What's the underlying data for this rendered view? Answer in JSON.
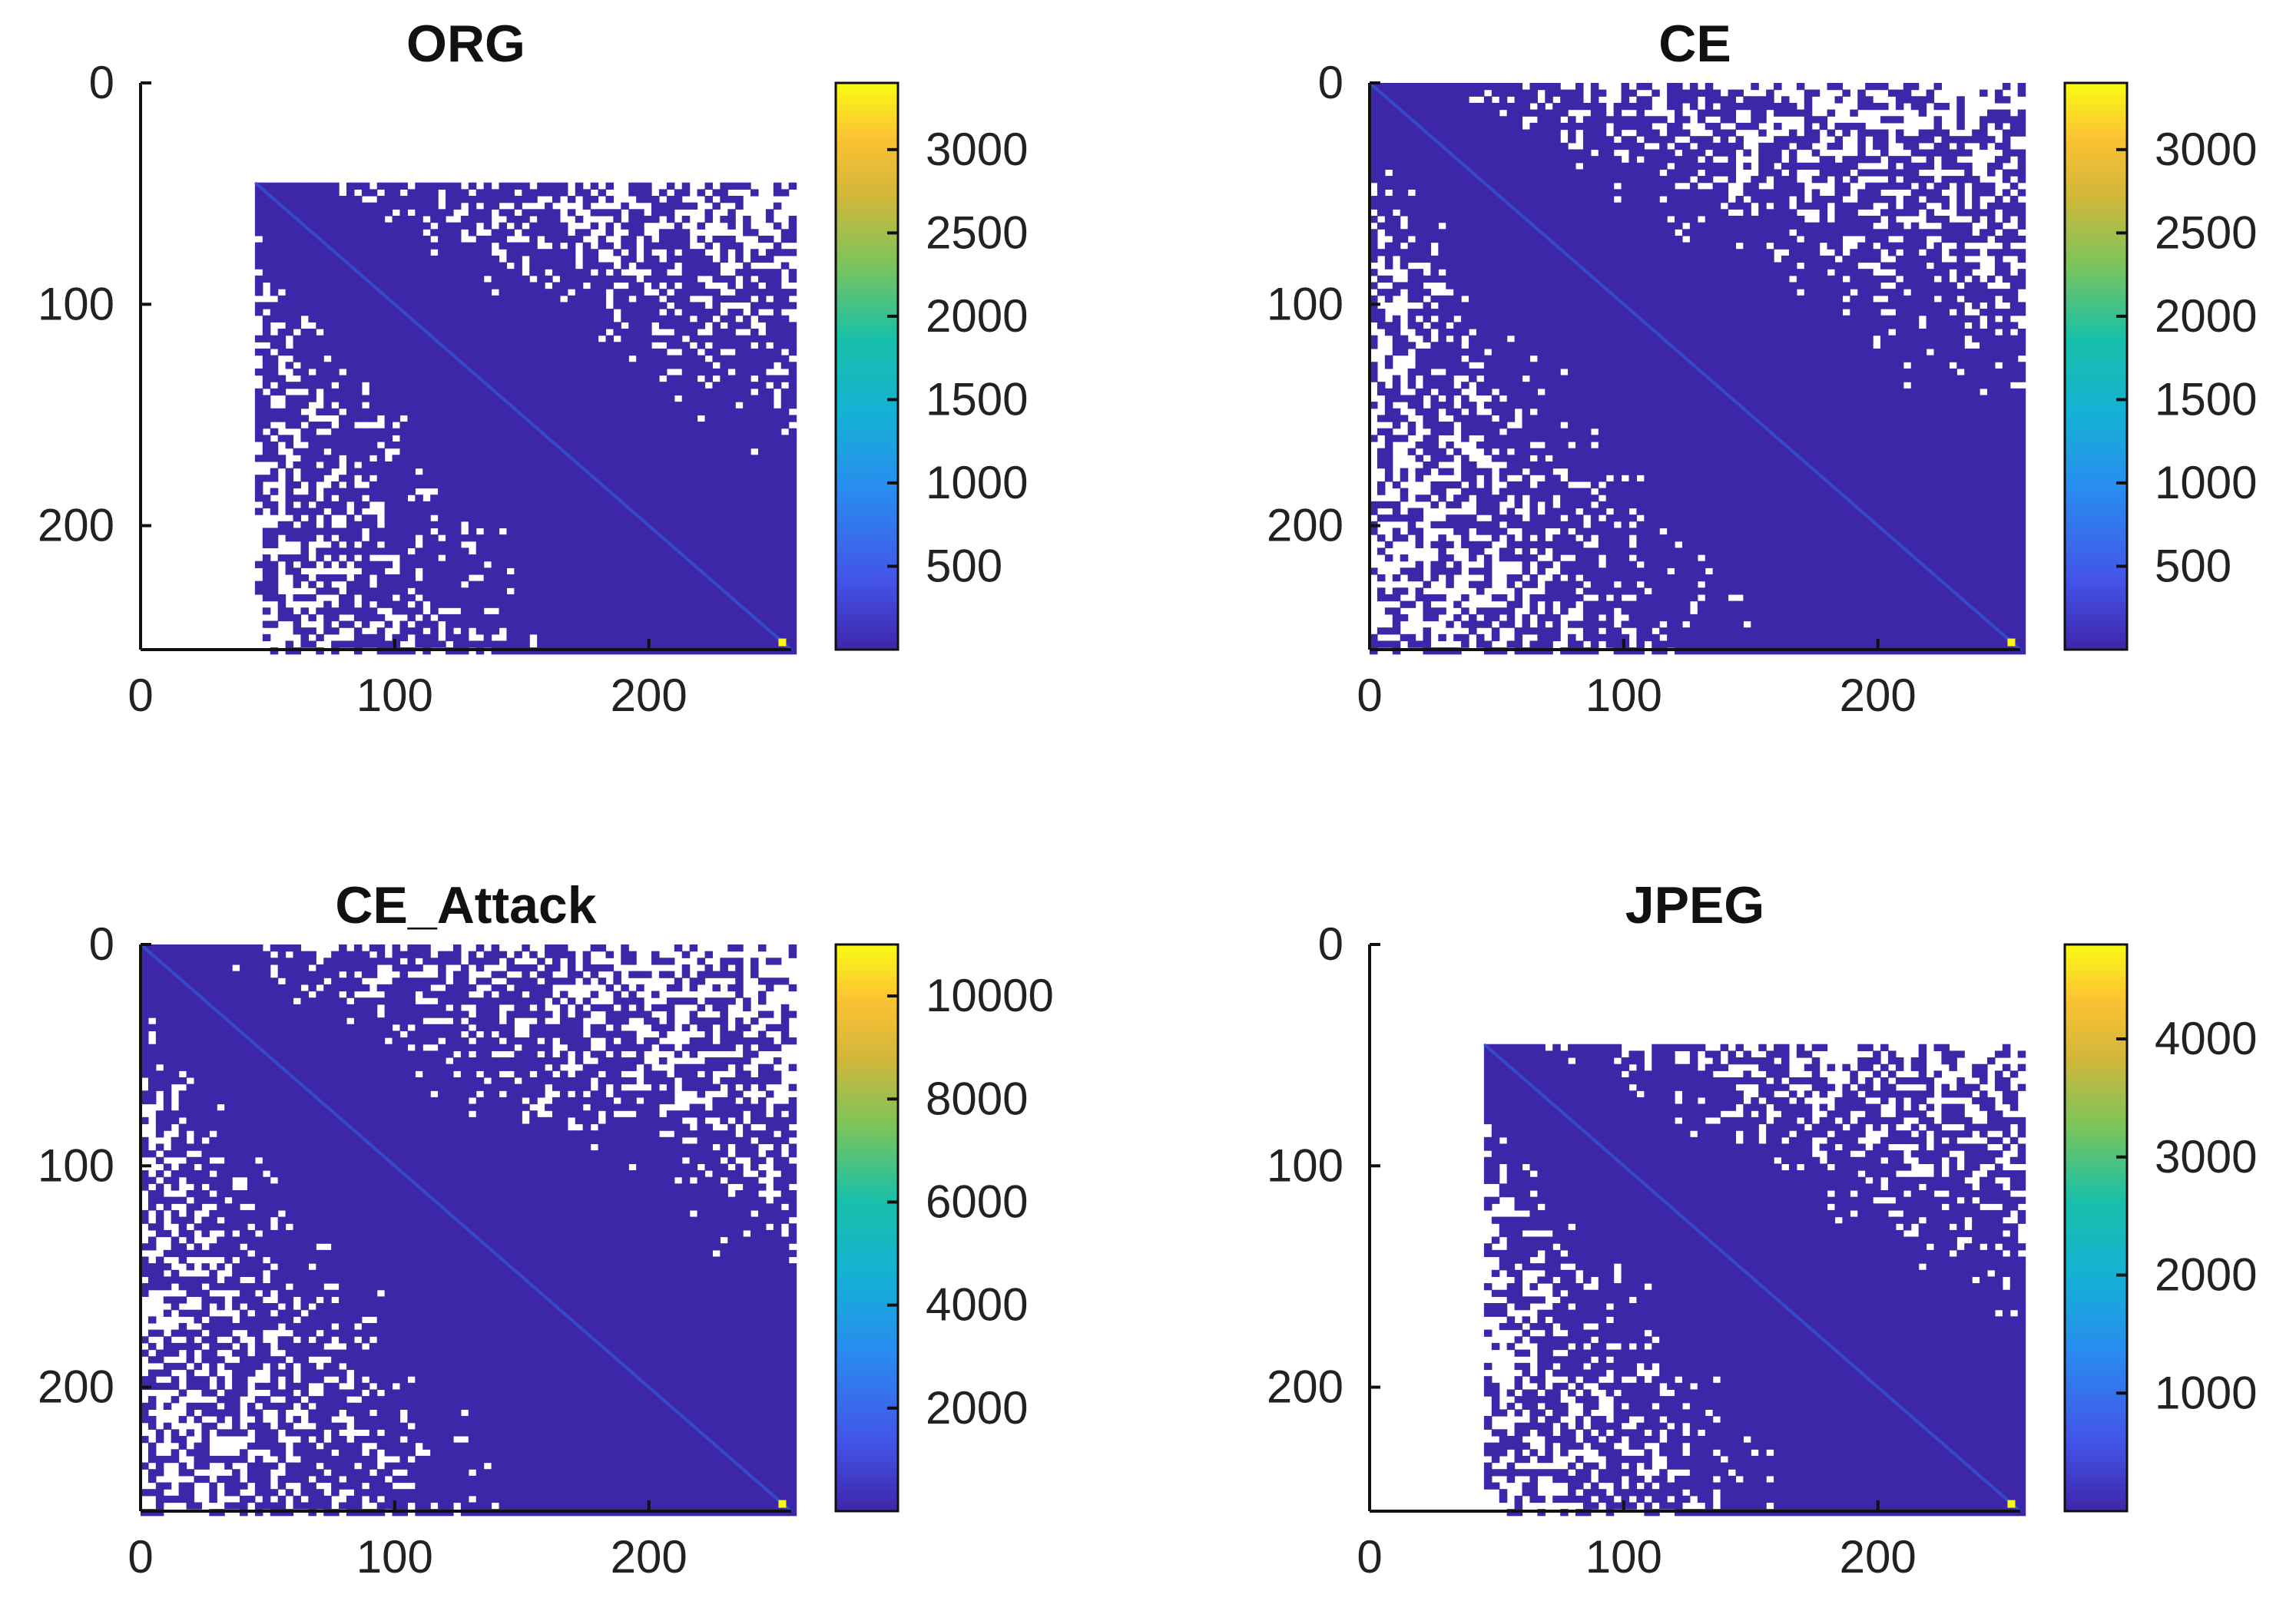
{
  "chart_data": [
    {
      "type": "heatmap",
      "title": "ORG",
      "xlim": [
        0,
        256
      ],
      "ylim": [
        256,
        0
      ],
      "xticks": [
        "0",
        "100",
        "200"
      ],
      "yticks": [
        "0",
        "100",
        "200"
      ],
      "colorbar": {
        "range": [
          0,
          3400
        ],
        "ticks": [
          "500",
          "1000",
          "1500",
          "2000",
          "2500",
          "3000"
        ]
      },
      "colormap": "parula",
      "distribution": {
        "y_start": 45,
        "x_start": 45,
        "diagonal_peak": 3400,
        "bulk_value": 20
      }
    },
    {
      "type": "heatmap",
      "title": "CE",
      "xlim": [
        0,
        256
      ],
      "ylim": [
        256,
        0
      ],
      "xticks": [
        "0",
        "100",
        "200"
      ],
      "yticks": [
        "0",
        "100",
        "200"
      ],
      "colorbar": {
        "range": [
          0,
          3400
        ],
        "ticks": [
          "500",
          "1000",
          "1500",
          "2000",
          "2500",
          "3000"
        ]
      },
      "colormap": "parula",
      "distribution": {
        "y_start": 0,
        "x_start": 0,
        "diagonal_peak": 3400,
        "bulk_value": 20
      }
    },
    {
      "type": "heatmap",
      "title": "CE_Attack",
      "xlim": [
        0,
        256
      ],
      "ylim": [
        256,
        0
      ],
      "xticks": [
        "0",
        "100",
        "200"
      ],
      "yticks": [
        "0",
        "100",
        "200"
      ],
      "colorbar": {
        "range": [
          0,
          11000
        ],
        "ticks": [
          "2000",
          "4000",
          "6000",
          "8000",
          "10000"
        ]
      },
      "colormap": "parula",
      "distribution": {
        "y_start": 0,
        "x_start": 0,
        "diagonal_peak": 11000,
        "bulk_value": 40
      }
    },
    {
      "type": "heatmap",
      "title": "JPEG",
      "xlim": [
        0,
        256
      ],
      "ylim": [
        256,
        0
      ],
      "xticks": [
        "0",
        "100",
        "200"
      ],
      "yticks": [
        "0",
        "100",
        "200"
      ],
      "colorbar": {
        "range": [
          0,
          4800
        ],
        "ticks": [
          "1000",
          "2000",
          "3000",
          "4000"
        ]
      },
      "colormap": "parula",
      "distribution": {
        "y_start": 45,
        "x_start": 45,
        "diagonal_peak": 4800,
        "bulk_value": 20
      }
    }
  ],
  "colors": {
    "bulk": "#3e26a8",
    "colormap_stops": [
      "#3e26a8",
      "#4353e8",
      "#2a8bf0",
      "#13b2d4",
      "#19c0a8",
      "#7cc45a",
      "#d1b73a",
      "#fcc133",
      "#f9fb14"
    ]
  }
}
